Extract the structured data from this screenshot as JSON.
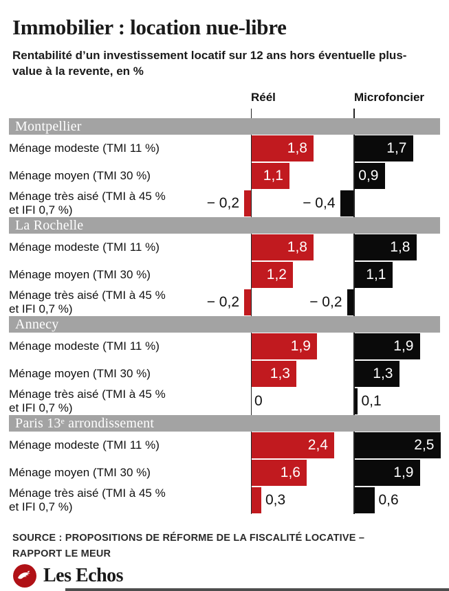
{
  "header": {
    "title": "Immobilier : location nue-libre",
    "subtitle": "Rentabilité d’un investissement locatif sur 12 ans hors éventuelle plus-value à la revente, en %"
  },
  "chart_data": {
    "type": "bar",
    "orientation": "horizontal",
    "value_unit": "%",
    "columns": [
      "Réél",
      "Microfoncier"
    ],
    "colors": {
      "reel_bar": "#c11a1f",
      "micro_bar": "#0a0a0a",
      "section_band": "#a3a3a3"
    },
    "legend_position": "top",
    "xlim_per_column": [
      -0.5,
      2.6
    ],
    "sections": [
      {
        "name": "Montpellier",
        "rows": [
          {
            "label": "Ménage modeste (TMI 11 %)",
            "reel": 1.8,
            "reel_label": "1,8",
            "micro": 1.7,
            "micro_label": "1,7"
          },
          {
            "label": "Ménage moyen (TMI 30 %)",
            "reel": 1.1,
            "reel_label": "1,1",
            "micro": 0.9,
            "micro_label": "0,9"
          },
          {
            "label": "Ménage très aisé (TMI à 45 %\net IFI 0,7 %)",
            "reel": -0.2,
            "reel_label": "− 0,2",
            "micro": -0.4,
            "micro_label": "− 0,4"
          }
        ]
      },
      {
        "name": "La Rochelle",
        "rows": [
          {
            "label": "Ménage modeste (TMI 11 %)",
            "reel": 1.8,
            "reel_label": "1,8",
            "micro": 1.8,
            "micro_label": "1,8"
          },
          {
            "label": "Ménage moyen (TMI 30 %)",
            "reel": 1.2,
            "reel_label": "1,2",
            "micro": 1.1,
            "micro_label": "1,1"
          },
          {
            "label": "Ménage très aisé (TMI à 45 %\net IFI 0,7 %)",
            "reel": -0.2,
            "reel_label": "− 0,2",
            "micro": -0.2,
            "micro_label": "− 0,2"
          }
        ]
      },
      {
        "name": "Annecy",
        "rows": [
          {
            "label": "Ménage modeste (TMI 11 %)",
            "reel": 1.9,
            "reel_label": "1,9",
            "micro": 1.9,
            "micro_label": "1,9"
          },
          {
            "label": "Ménage moyen (TMI 30 %)",
            "reel": 1.3,
            "reel_label": "1,3",
            "micro": 1.3,
            "micro_label": "1,3"
          },
          {
            "label": "Ménage très aisé (TMI à 45 %\net IFI 0,7 %)",
            "reel": 0,
            "reel_label": "0",
            "micro": 0.1,
            "micro_label": "0,1"
          }
        ]
      },
      {
        "name": "Paris 13ᵉ arrondissement",
        "rows": [
          {
            "label": "Ménage modeste (TMI 11 %)",
            "reel": 2.4,
            "reel_label": "2,4",
            "micro": 2.5,
            "micro_label": "2,5"
          },
          {
            "label": "Ménage moyen (TMI 30 %)",
            "reel": 1.6,
            "reel_label": "1,6",
            "micro": 1.9,
            "micro_label": "1,9"
          },
          {
            "label": "Ménage très aisé (TMI à 45 %\net IFI 0,7 %)",
            "reel": 0.3,
            "reel_label": "0,3",
            "micro": 0.6,
            "micro_label": "0,6"
          }
        ]
      }
    ]
  },
  "footer": {
    "source_line1": "SOURCE : PROPOSITIONS DE RÉFORME DE LA FISCALITÉ LOCATIVE –",
    "source_line2": "RAPPORT LE MEUR",
    "brand": "Les Echos"
  }
}
